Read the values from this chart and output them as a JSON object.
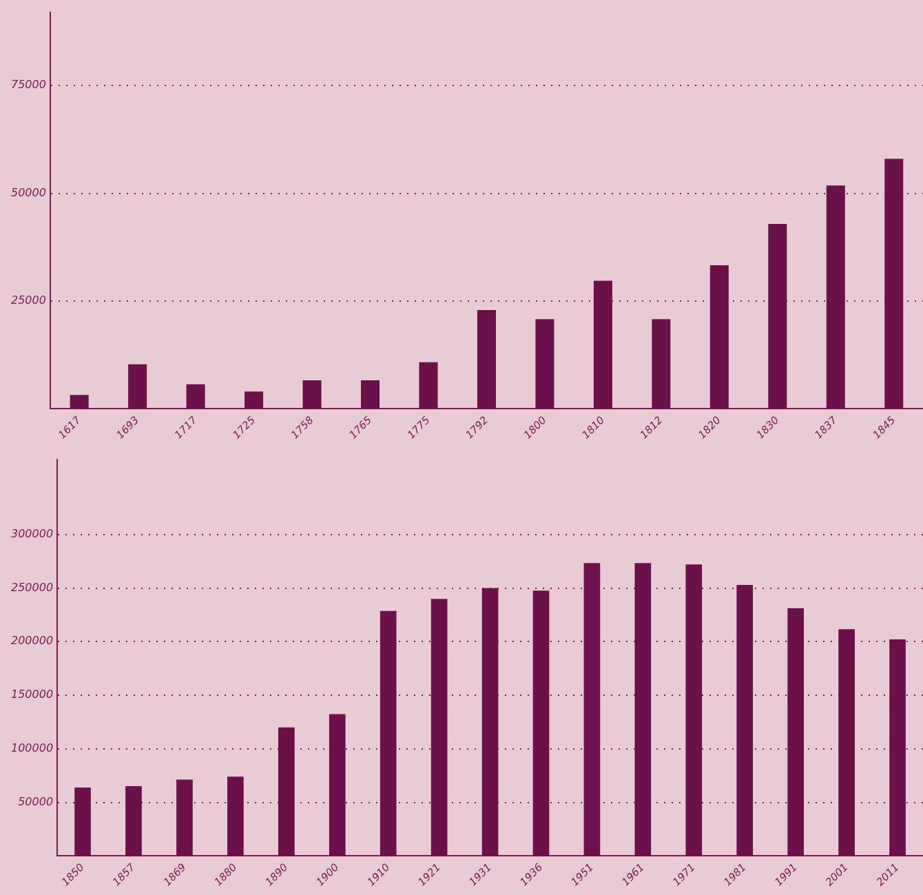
{
  "chart_data": [
    {
      "type": "bar",
      "categories": [
        "1617",
        "1693",
        "1717",
        "1725",
        "1758",
        "1765",
        "1775",
        "1792",
        "1800",
        "1810",
        "1812",
        "1820",
        "1830",
        "1837",
        "1845"
      ],
      "values": [
        3200,
        10300,
        5700,
        4000,
        6600,
        6600,
        10800,
        22900,
        20800,
        29700,
        20800,
        33300,
        42900,
        51800,
        58000
      ],
      "color": "#6b1049",
      "ylim": [
        0,
        92000
      ],
      "yticks": [
        25000,
        50000,
        75000
      ],
      "grid": "y"
    },
    {
      "type": "bar",
      "categories": [
        "1850",
        "1857",
        "1869",
        "1880",
        "1890",
        "1900",
        "1910",
        "1921",
        "1931",
        "1936",
        "1951",
        "1961",
        "1971",
        "1981",
        "1991",
        "2001",
        "2011"
      ],
      "values": [
        63800,
        65100,
        71200,
        74000,
        120000,
        132300,
        228600,
        240000,
        250000,
        247600,
        273400,
        273400,
        272000,
        253000,
        231300,
        211700,
        202200
      ],
      "color": "#6b1049",
      "ylim": [
        0,
        370000
      ],
      "yticks": [
        50000,
        100000,
        150000,
        200000,
        250000,
        300000
      ],
      "grid": "y"
    }
  ]
}
